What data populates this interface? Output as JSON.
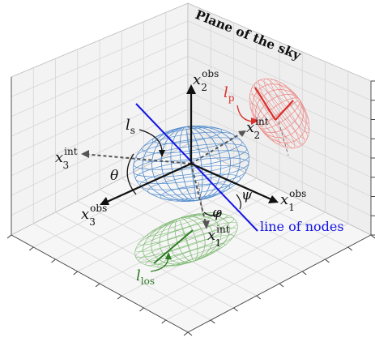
{
  "title": "Plane of the sky",
  "line_of_nodes": "line of nodes",
  "axes": {
    "x1_obs": {
      "base": "x",
      "sub": "1",
      "sup": "obs"
    },
    "x2_obs": {
      "base": "x",
      "sub": "2",
      "sup": "obs"
    },
    "x3_obs": {
      "base": "x",
      "sub": "3",
      "sup": "obs"
    },
    "x1_int": {
      "base": "x",
      "sub": "1",
      "sup": "int"
    },
    "x2_int": {
      "base": "x",
      "sub": "2",
      "sup": "int"
    },
    "x3_int": {
      "base": "x",
      "sub": "3",
      "sup": "int"
    }
  },
  "angles": {
    "theta": "θ",
    "phi": "φ",
    "psi": "ψ"
  },
  "lengths": {
    "ls": {
      "base": "l",
      "sub": "s"
    },
    "lp": {
      "base": "l",
      "sub": "p"
    },
    "llos": {
      "base": "l",
      "sub": "los"
    }
  },
  "colors": {
    "ellipsoid": "#3a78c2",
    "projection_sky": "#e8534f",
    "projection_los": "#4a9a3a",
    "line_of_nodes": "#1010e0",
    "axis": "#111111",
    "intrinsic_axis": "#555555",
    "box_pane": "#f2f2f2",
    "box_grid": "#d9d9d9"
  }
}
